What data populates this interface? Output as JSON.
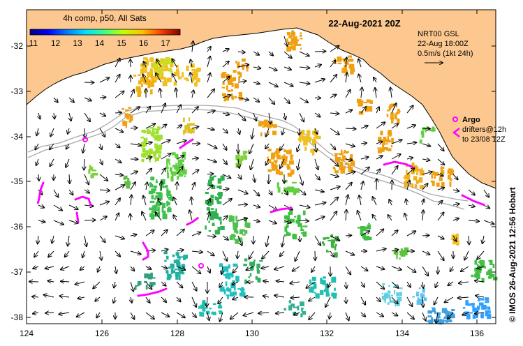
{
  "title": "22-Aug-2021 20Z",
  "colorbar": {
    "label": "4h comp, p50, All Sats",
    "ticks": [
      "11",
      "12",
      "13",
      "14",
      "15",
      "16",
      "17"
    ],
    "colors": [
      "#000080",
      "#0000ff",
      "#0080ff",
      "#00e0ff",
      "#40ff80",
      "#c0ff00",
      "#ffc000",
      "#ff4000",
      "#800000"
    ]
  },
  "current_info": {
    "model": "NRT00 GSL",
    "time": "22-Aug 18:00Z",
    "scale": "0.5m/s (1kt 24h)"
  },
  "legend": {
    "argo": "Argo",
    "drifters_line1": "drifters@12h",
    "drifters_line2": "to 23/08 12Z",
    "argo_color": "#ff00ff"
  },
  "credit": "© IMOS 26-Aug-2021 12:56 Hobart",
  "axes": {
    "x_ticks": [
      "124",
      "126",
      "128",
      "130",
      "132",
      "134",
      "136"
    ],
    "y_ticks": [
      "-32",
      "-33",
      "-34",
      "-35",
      "-36",
      "-37",
      "-38"
    ]
  },
  "colors": {
    "land": "#fcc890",
    "ocean": "#ffffff",
    "bathymetry": "#a8a8a8"
  }
}
